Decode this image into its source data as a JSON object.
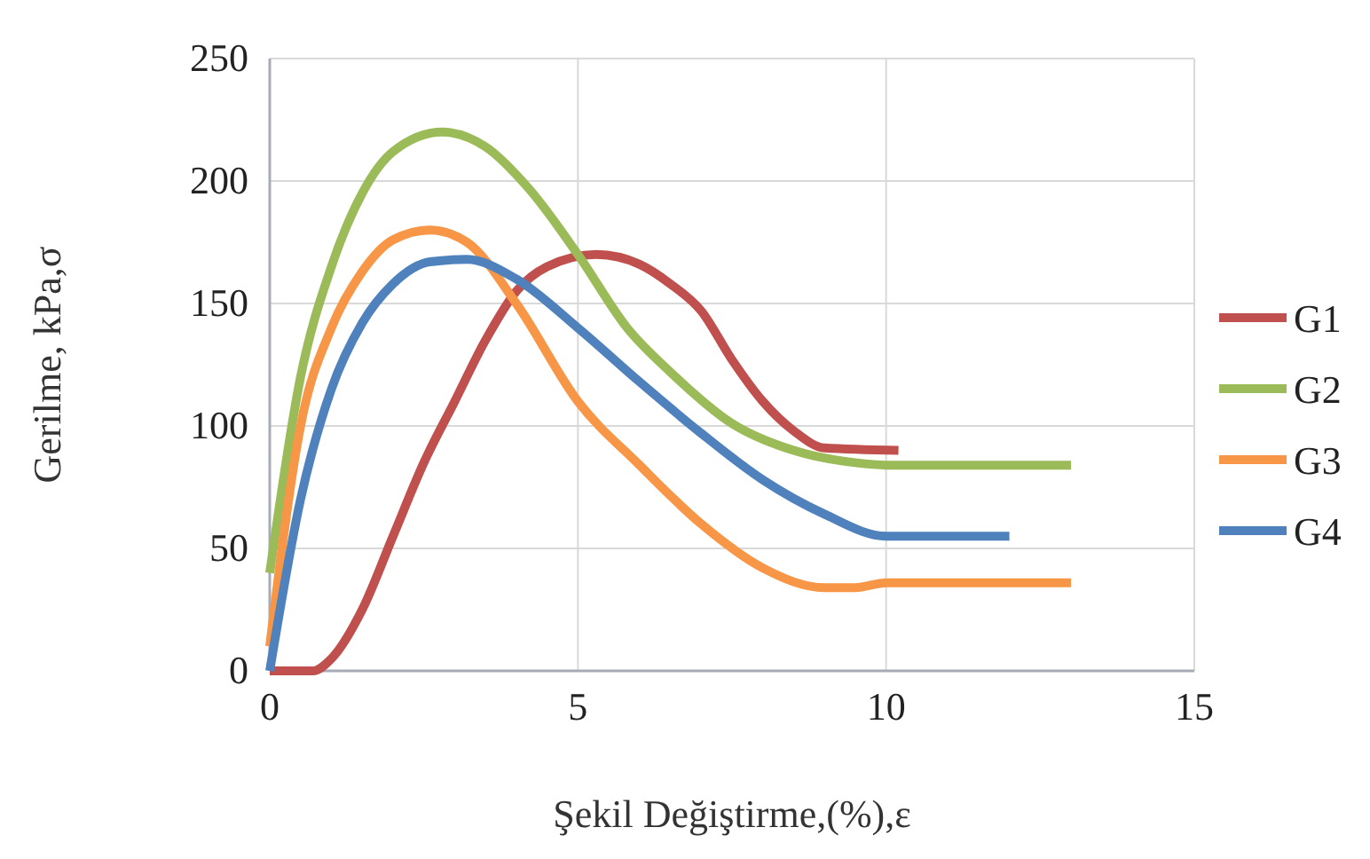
{
  "chart_data": {
    "type": "line",
    "xlabel": "Şekil Değiştirme,(%),ε",
    "ylabel": "Gerilme, kPa,σ",
    "xlim": [
      0,
      15
    ],
    "xticks": [
      0,
      5,
      10,
      15
    ],
    "ylim": [
      0,
      250
    ],
    "yticks": [
      0,
      50,
      100,
      150,
      200,
      250
    ],
    "grid": true,
    "legend": "right",
    "marker": "none",
    "line_style": "solid",
    "series": [
      {
        "name": "G1",
        "color": "#c0504d",
        "x": [
          0,
          0.7,
          1,
          1.5,
          2,
          2.5,
          3,
          3.5,
          4,
          4.5,
          5.3,
          6,
          6.5,
          7,
          7.5,
          8,
          8.5,
          9,
          10.2
        ],
        "values": [
          0,
          0,
          5,
          25,
          55,
          85,
          110,
          135,
          155,
          165,
          170,
          166,
          158,
          147,
          127,
          110,
          98,
          91,
          90
        ]
      },
      {
        "name": "G2",
        "color": "#9bbb59",
        "x": [
          0,
          0.5,
          1,
          1.5,
          2,
          2.8,
          3.5,
          4.2,
          5,
          5.8,
          6.5,
          7.5,
          8.5,
          9.5,
          10,
          13
        ],
        "values": [
          40,
          120,
          165,
          195,
          212,
          220,
          214,
          197,
          170,
          140,
          122,
          101,
          90,
          85,
          84,
          84
        ]
      },
      {
        "name": "G3",
        "color": "#f79646",
        "x": [
          0,
          0.5,
          1,
          1.5,
          2,
          2.6,
          3.2,
          4,
          5,
          6,
          7,
          8,
          9,
          9.5,
          10,
          13
        ],
        "values": [
          10,
          100,
          140,
          163,
          176,
          180,
          175,
          150,
          110,
          84,
          60,
          42,
          34,
          34,
          36,
          36
        ]
      },
      {
        "name": "G4",
        "color": "#4f81bd",
        "x": [
          0,
          0.5,
          1,
          1.5,
          2,
          2.6,
          3.2,
          4,
          5,
          6,
          7,
          8,
          9,
          10,
          12
        ],
        "values": [
          0,
          70,
          115,
          142,
          158,
          167,
          168,
          160,
          140,
          118,
          97,
          78,
          64,
          55,
          55
        ]
      }
    ]
  }
}
